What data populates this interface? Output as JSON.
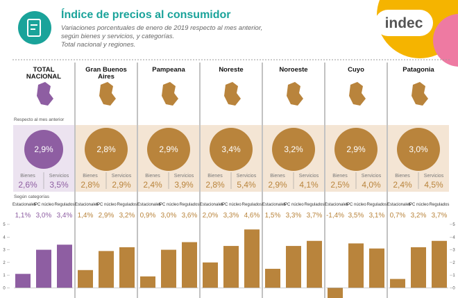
{
  "header": {
    "title": "Índice de precios al consumidor",
    "subtitle": [
      "Variaciones porcentuales de enero de 2019 respecto al mes anterior,",
      "según bienes y servicios, y categorías.",
      "Total nacional y regiones."
    ],
    "logo": "indec"
  },
  "labels": {
    "monthly": "Respecto al mes anterior",
    "categories": "Según categorías",
    "goods": "Bienes",
    "services": "Servicios"
  },
  "chart_data": [
    {
      "type": "bar",
      "title": "TOTAL NACIONAL",
      "monthly": "2,9%",
      "goods": "2,6%",
      "services": "3,5%",
      "categories": [
        "Estacionales",
        "IPC núcleo",
        "Regulados"
      ],
      "values": [
        1.1,
        3.0,
        3.4
      ],
      "value_labels": [
        "1,1%",
        "3,0%",
        "3,4%"
      ],
      "color": "#8e5ea2",
      "ylim": [
        -0.8,
        5
      ],
      "yticks": [
        0,
        1,
        2,
        3,
        4,
        5
      ]
    },
    {
      "type": "bar",
      "title": "Gran Buenos Aires",
      "monthly": "2,8%",
      "goods": "2,8%",
      "services": "2,9%",
      "categories": [
        "Estacionales",
        "IPC núcleo",
        "Regulados"
      ],
      "values": [
        1.4,
        2.9,
        3.2
      ],
      "value_labels": [
        "1,4%",
        "2,9%",
        "3,2%"
      ],
      "color": "#b9843c",
      "ylim": [
        -0.8,
        5
      ]
    },
    {
      "type": "bar",
      "title": "Pampeana",
      "monthly": "2,9%",
      "goods": "2,4%",
      "services": "3,9%",
      "categories": [
        "Estacionales",
        "IPC núcleo",
        "Regulados"
      ],
      "values": [
        0.9,
        3.0,
        3.6
      ],
      "value_labels": [
        "0,9%",
        "3,0%",
        "3,6%"
      ],
      "color": "#b9843c",
      "ylim": [
        -0.8,
        5
      ]
    },
    {
      "type": "bar",
      "title": "Noreste",
      "monthly": "3,4%",
      "goods": "2,8%",
      "services": "5,4%",
      "categories": [
        "Estacionales",
        "IPC núcleo",
        "Regulados"
      ],
      "values": [
        2.0,
        3.3,
        4.6
      ],
      "value_labels": [
        "2,0%",
        "3,3%",
        "4,6%"
      ],
      "color": "#b9843c",
      "ylim": [
        -0.8,
        5
      ]
    },
    {
      "type": "bar",
      "title": "Noroeste",
      "monthly": "3,2%",
      "goods": "2,9%",
      "services": "4,1%",
      "categories": [
        "Estacionales",
        "IPC núcleo",
        "Regulados"
      ],
      "values": [
        1.5,
        3.3,
        3.7
      ],
      "value_labels": [
        "1,5%",
        "3,3%",
        "3,7%"
      ],
      "color": "#b9843c",
      "ylim": [
        -0.8,
        5
      ]
    },
    {
      "type": "bar",
      "title": "Cuyo",
      "monthly": "2,9%",
      "goods": "2,5%",
      "services": "4,0%",
      "categories": [
        "Estacionales",
        "IPC núcleo",
        "Regulados"
      ],
      "values": [
        -1.4,
        3.5,
        3.1
      ],
      "value_labels": [
        "-1,4%",
        "3,5%",
        "3,1%"
      ],
      "color": "#b9843c",
      "ylim": [
        -0.8,
        5
      ]
    },
    {
      "type": "bar",
      "title": "Patagonia",
      "monthly": "3,0%",
      "goods": "2,4%",
      "services": "4,5%",
      "categories": [
        "Estacionales",
        "IPC núcleo",
        "Regulados"
      ],
      "values": [
        0.7,
        3.2,
        3.7
      ],
      "value_labels": [
        "0,7%",
        "3,2%",
        "3,7%"
      ],
      "color": "#b9843c",
      "ylim": [
        -0.8,
        5
      ],
      "yticks": [
        0,
        1,
        2,
        3,
        4,
        5
      ]
    }
  ]
}
